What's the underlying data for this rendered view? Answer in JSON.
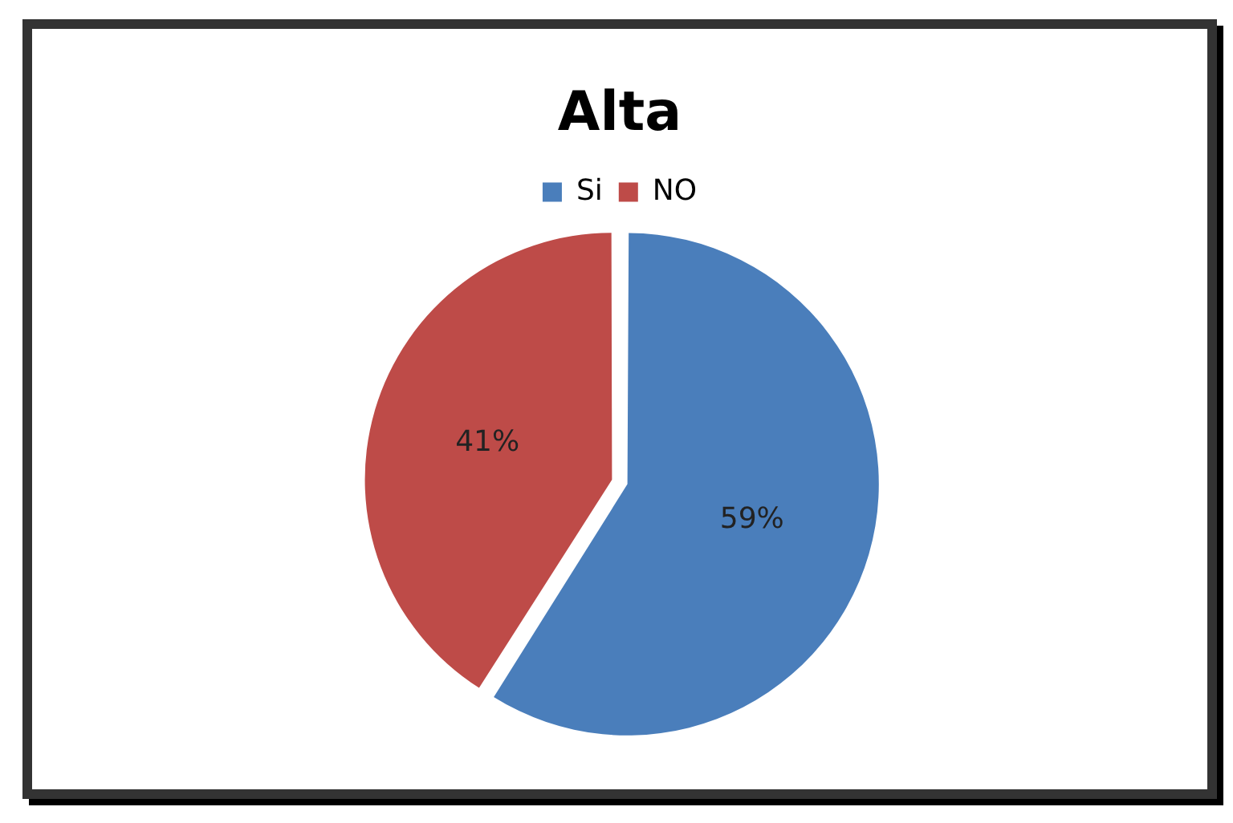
{
  "chart_data": {
    "type": "pie",
    "title": "Alta",
    "categories": [
      "Si",
      "NO"
    ],
    "values": [
      59,
      41
    ],
    "colors": [
      "#4a7ebb",
      "#be4b48"
    ],
    "value_labels": [
      "59%",
      "41%"
    ],
    "legend": "top"
  }
}
